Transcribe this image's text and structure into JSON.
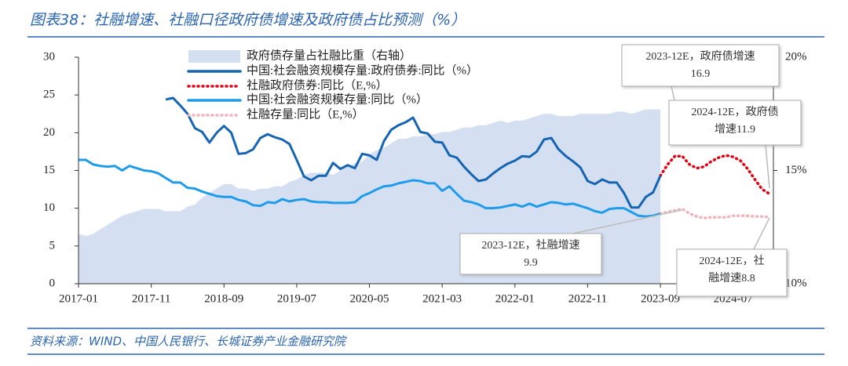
{
  "chart_data": {
    "type": "line",
    "title": "图表38：社融增速、社融口径政府债增速及政府债占比预测（%）",
    "source": "资料来源：WIND、中国人民银行、长城证券产业金融研究院",
    "categories": [
      "2017-01",
      "2017-02",
      "2017-03",
      "2017-04",
      "2017-05",
      "2017-06",
      "2017-07",
      "2017-08",
      "2017-09",
      "2017-10",
      "2017-11",
      "2017-12",
      "2018-01",
      "2018-02",
      "2018-03",
      "2018-04",
      "2018-05",
      "2018-06",
      "2018-07",
      "2018-08",
      "2018-09",
      "2018-10",
      "2018-11",
      "2018-12",
      "2019-01",
      "2019-02",
      "2019-03",
      "2019-04",
      "2019-05",
      "2019-06",
      "2019-07",
      "2019-08",
      "2019-09",
      "2019-10",
      "2019-11",
      "2019-12",
      "2020-01",
      "2020-02",
      "2020-03",
      "2020-04",
      "2020-05",
      "2020-06",
      "2020-07",
      "2020-08",
      "2020-09",
      "2020-10",
      "2020-11",
      "2020-12",
      "2021-01",
      "2021-02",
      "2021-03",
      "2021-04",
      "2021-05",
      "2021-06",
      "2021-07",
      "2021-08",
      "2021-09",
      "2021-10",
      "2021-11",
      "2021-12",
      "2022-01",
      "2022-02",
      "2022-03",
      "2022-04",
      "2022-05",
      "2022-06",
      "2022-07",
      "2022-08",
      "2022-09",
      "2022-10",
      "2022-11",
      "2022-12",
      "2023-01",
      "2023-02",
      "2023-03",
      "2023-04",
      "2023-05",
      "2023-06",
      "2023-07",
      "2023-08",
      "2023-09",
      "2023-10",
      "2023-11",
      "2023-12",
      "2024-01",
      "2024-02",
      "2024-03",
      "2024-04",
      "2024-05",
      "2024-06",
      "2024-07",
      "2024-08",
      "2024-09",
      "2024-10",
      "2024-11",
      "2024-12"
    ],
    "xticks": [
      "2017-01",
      "2017-11",
      "2018-09",
      "2019-07",
      "2020-05",
      "2021-03",
      "2022-01",
      "2022-11",
      "2023-09",
      "2024-07"
    ],
    "ylim": [
      0,
      30
    ],
    "yticks": [
      0,
      5,
      10,
      15,
      20,
      25,
      30
    ],
    "y2lim": [
      10,
      20
    ],
    "y2ticks": [
      {
        "value": 10,
        "label": "10%"
      },
      {
        "value": 15,
        "label": "15%"
      },
      {
        "value": 20,
        "label": "20%"
      }
    ],
    "grid": false,
    "series": [
      {
        "name": "政府债存量占社融比重（右轴）",
        "color": "#d5dff2",
        "axis": "y2",
        "style": "area",
        "values": [
          12.2,
          12.1,
          12.2,
          12.4,
          12.6,
          12.8,
          13.0,
          13.1,
          13.2,
          13.3,
          13.3,
          13.3,
          13.2,
          13.2,
          13.2,
          13.4,
          13.5,
          13.8,
          14.0,
          14.2,
          14.4,
          14.4,
          14.2,
          14.2,
          14.1,
          14.2,
          14.2,
          14.3,
          14.3,
          14.5,
          14.6,
          14.8,
          14.9,
          14.9,
          14.9,
          14.8,
          15.0,
          15.2,
          15.3,
          15.4,
          15.7,
          15.9,
          16.0,
          16.2,
          16.4,
          16.4,
          16.5,
          16.5,
          16.6,
          16.6,
          16.7,
          16.7,
          16.8,
          16.9,
          16.9,
          17.0,
          17.0,
          17.1,
          17.2,
          17.1,
          17.2,
          17.2,
          17.3,
          17.4,
          17.5,
          17.5,
          17.4,
          17.4,
          17.4,
          17.5,
          17.5,
          17.5,
          17.5,
          17.5,
          17.6,
          17.6,
          17.5,
          17.6,
          17.7,
          17.7,
          17.7,
          null,
          null,
          null,
          null,
          null,
          null,
          null,
          null,
          null,
          null,
          null,
          null,
          null,
          null,
          null
        ]
      },
      {
        "name": "中国:社会融资规模存量:政府债券:同比（%）",
        "color": "#1565b3",
        "style": "solid",
        "values": [
          null,
          null,
          null,
          null,
          null,
          null,
          null,
          null,
          null,
          null,
          null,
          null,
          24.4,
          24.6,
          23.6,
          22.5,
          20.6,
          20.1,
          18.7,
          20.0,
          20.9,
          20.0,
          17.2,
          17.3,
          17.8,
          19.3,
          19.8,
          19.4,
          19.1,
          18.5,
          16.4,
          14.2,
          13.7,
          14.3,
          14.3,
          16.0,
          15.2,
          15.7,
          15.3,
          17.2,
          17.0,
          16.4,
          18.9,
          20.4,
          21.0,
          21.4,
          22.0,
          20.1,
          19.9,
          18.8,
          18.7,
          17.0,
          16.7,
          15.5,
          14.5,
          13.6,
          13.8,
          14.6,
          15.3,
          15.9,
          16.3,
          16.9,
          16.8,
          17.5,
          19.1,
          19.3,
          17.8,
          16.9,
          16.2,
          15.4,
          13.6,
          13.2,
          13.8,
          13.4,
          13.4,
          12.0,
          10.1,
          10.1,
          11.5,
          12.1,
          14.3,
          null,
          null,
          null,
          null,
          null,
          null,
          null,
          null,
          null,
          null,
          null,
          null,
          null,
          null,
          null
        ]
      },
      {
        "name": "社融政府债券:同比（E,%）",
        "color": "#e60012",
        "style": "dotted",
        "values": [
          null,
          null,
          null,
          null,
          null,
          null,
          null,
          null,
          null,
          null,
          null,
          null,
          null,
          null,
          null,
          null,
          null,
          null,
          null,
          null,
          null,
          null,
          null,
          null,
          null,
          null,
          null,
          null,
          null,
          null,
          null,
          null,
          null,
          null,
          null,
          null,
          null,
          null,
          null,
          null,
          null,
          null,
          null,
          null,
          null,
          null,
          null,
          null,
          null,
          null,
          null,
          null,
          null,
          null,
          null,
          null,
          null,
          null,
          null,
          null,
          null,
          null,
          null,
          null,
          null,
          null,
          null,
          null,
          null,
          null,
          null,
          null,
          null,
          null,
          null,
          null,
          null,
          null,
          null,
          null,
          14.3,
          15.8,
          16.9,
          16.9,
          15.8,
          15.3,
          15.5,
          16.2,
          16.7,
          17.0,
          16.8,
          16.3,
          15.2,
          13.8,
          12.5,
          11.9
        ]
      },
      {
        "name": "中国:社会融资规模存量:同比（%）",
        "color": "#1e9be9",
        "style": "solid",
        "values": [
          16.4,
          16.4,
          15.8,
          15.6,
          15.5,
          15.6,
          15.0,
          15.6,
          15.3,
          15.0,
          14.9,
          14.6,
          14.0,
          13.4,
          13.4,
          12.7,
          12.6,
          12.2,
          11.9,
          11.6,
          11.5,
          11.5,
          11.1,
          10.9,
          10.4,
          10.3,
          10.8,
          10.7,
          11.2,
          10.9,
          11.1,
          11.2,
          10.9,
          10.8,
          10.8,
          10.7,
          10.7,
          10.7,
          10.8,
          11.6,
          12.0,
          12.5,
          12.9,
          13.0,
          13.3,
          13.5,
          13.7,
          13.6,
          13.3,
          13.3,
          12.3,
          12.9,
          11.9,
          11.0,
          10.8,
          10.5,
          10.0,
          10.0,
          10.1,
          10.3,
          10.5,
          10.2,
          10.6,
          10.2,
          10.5,
          10.8,
          10.7,
          10.5,
          10.6,
          10.3,
          10.0,
          9.6,
          9.4,
          9.9,
          10.0,
          10.0,
          9.5,
          9.0,
          8.9,
          9.0,
          9.3,
          null,
          null,
          null,
          null,
          null,
          null,
          null,
          null,
          null,
          null,
          null,
          null,
          null,
          null,
          null
        ]
      },
      {
        "name": "社融存量:同比（E,%）",
        "color": "#f2b3bb",
        "style": "dotted",
        "values": [
          null,
          null,
          null,
          null,
          null,
          null,
          null,
          null,
          null,
          null,
          null,
          null,
          null,
          null,
          null,
          null,
          null,
          null,
          null,
          null,
          null,
          null,
          null,
          null,
          null,
          null,
          null,
          null,
          null,
          null,
          null,
          null,
          null,
          null,
          null,
          null,
          null,
          null,
          null,
          null,
          null,
          null,
          null,
          null,
          null,
          null,
          null,
          null,
          null,
          null,
          null,
          null,
          null,
          null,
          null,
          null,
          null,
          null,
          null,
          null,
          null,
          null,
          null,
          null,
          null,
          null,
          null,
          null,
          null,
          null,
          null,
          null,
          null,
          null,
          null,
          null,
          null,
          null,
          null,
          null,
          9.3,
          9.5,
          9.7,
          9.9,
          9.3,
          8.9,
          8.7,
          8.8,
          8.8,
          8.8,
          9.0,
          9.0,
          9.0,
          8.9,
          8.9,
          8.8
        ]
      }
    ],
    "annotations": [
      {
        "text": [
          "2023-12E，政府债增速",
          "16.9"
        ]
      },
      {
        "text": [
          "2024-12E，政府债",
          "增速11.9"
        ]
      },
      {
        "text": [
          "2023-12E，社融增速",
          "9.9"
        ]
      },
      {
        "text": [
          "2024-12E，社",
          "融增速8.8"
        ]
      }
    ]
  }
}
